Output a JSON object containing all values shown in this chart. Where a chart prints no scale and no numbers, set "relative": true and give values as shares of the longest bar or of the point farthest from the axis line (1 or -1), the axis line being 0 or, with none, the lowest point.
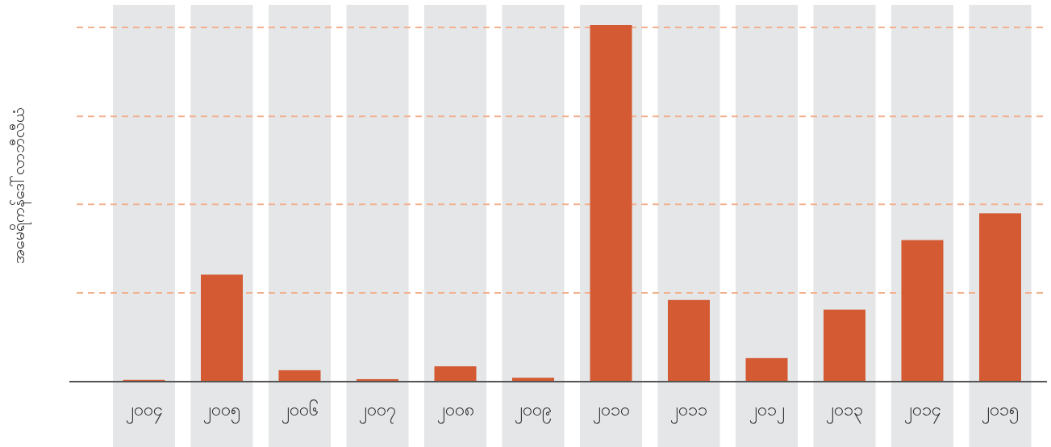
{
  "chart_data": {
    "type": "bar",
    "ylabel": "အမေရိကန်ဒေါ်လာဘီလီယံ",
    "relative": true,
    "categories": [
      "၂၀၀၄",
      "၂၀၀၅",
      "၂၀၀၆",
      "၂၀၀၇",
      "၂၀၀၈",
      "၂၀၀၉",
      "၂၀၁၀",
      "၂၀၁၁",
      "၂၀၁၂",
      "၂၀၁၃",
      "၂၀၁၄",
      "၂၀၁၅"
    ],
    "color": "#d35a33",
    "values": [
      0.005,
      0.3,
      0.032,
      0.007,
      0.043,
      0.011,
      1,
      0.229,
      0.066,
      0.202,
      0.397,
      0.472
    ],
    "ref_lines": [
      {
        "axis": "y",
        "value": 0.249,
        "color": "#f2b08e",
        "line_style": "dashed"
      },
      {
        "axis": "y",
        "value": 0.497,
        "color": "#f2b08e",
        "line_style": "dashed"
      },
      {
        "axis": "y",
        "value": 0.744,
        "color": "#f2b08e",
        "line_style": "dashed"
      },
      {
        "axis": "y",
        "value": 0.993,
        "color": "#f2b08e",
        "line_style": "dashed"
      }
    ]
  }
}
